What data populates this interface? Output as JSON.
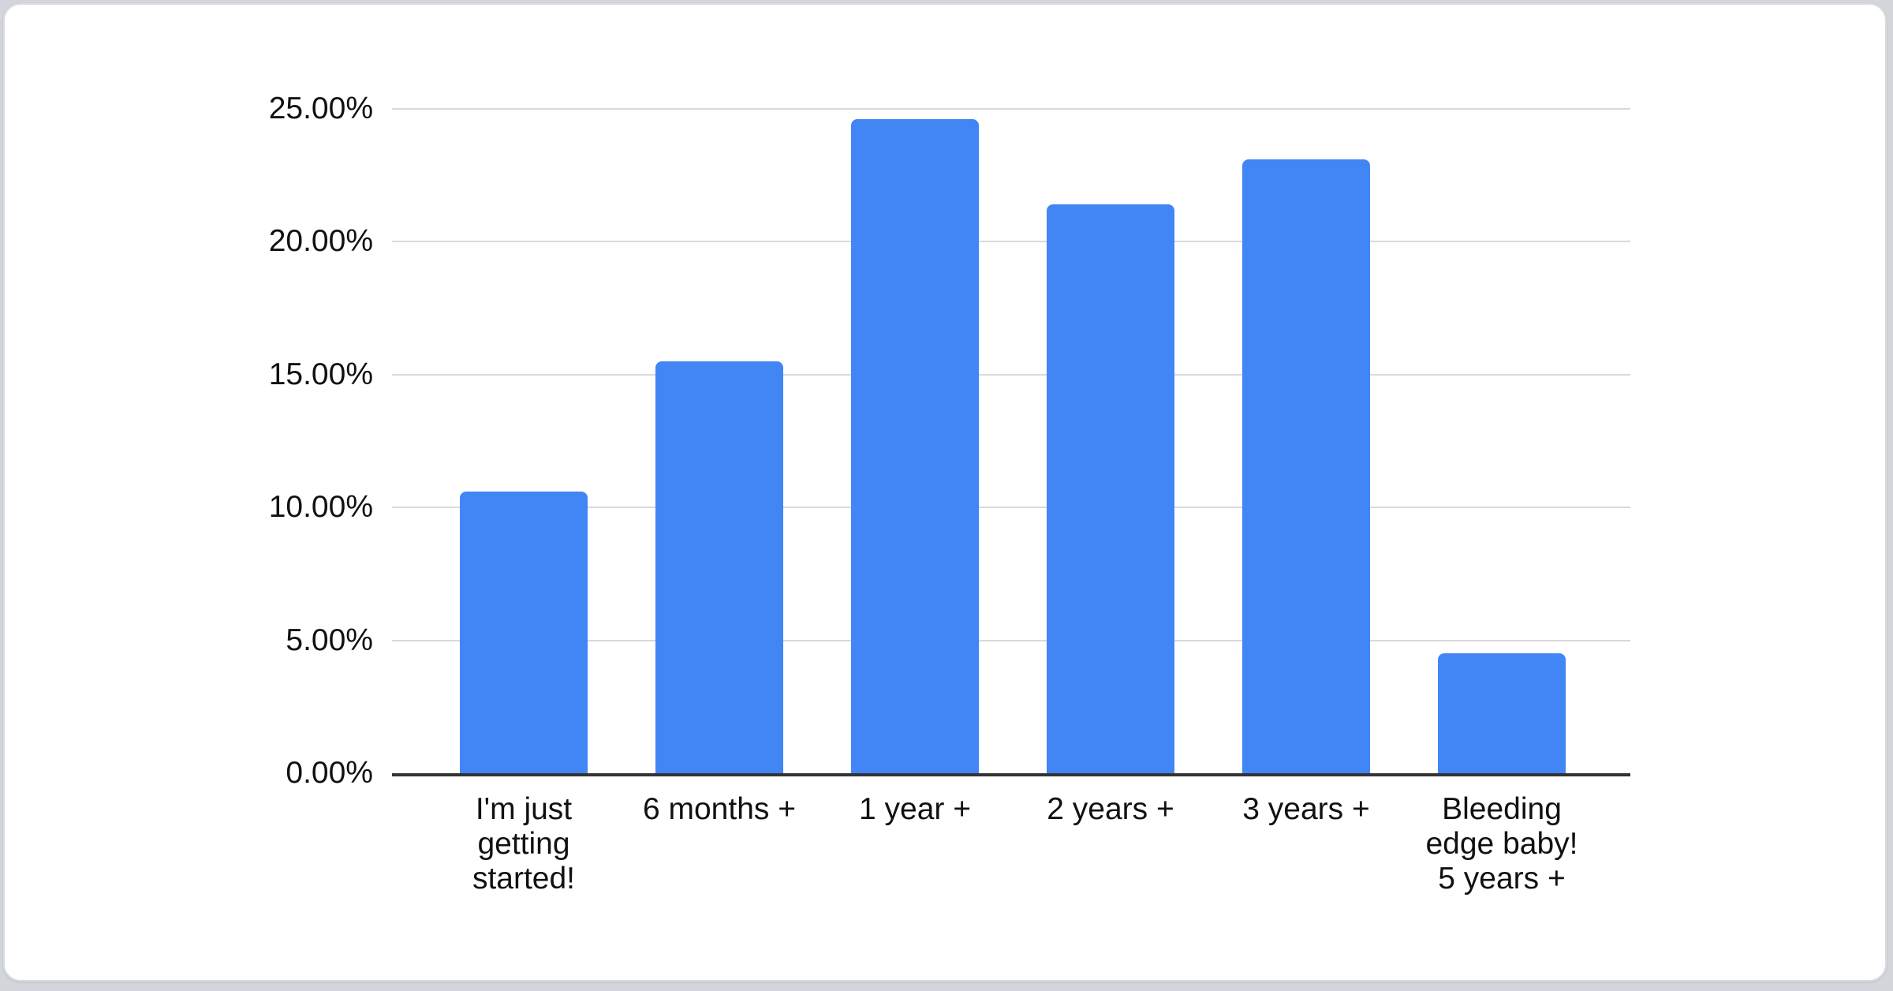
{
  "page": {
    "background_color": "#d3d6da",
    "card_background": "#ffffff",
    "card_border_color": "#d9dce0"
  },
  "chart_data": {
    "type": "bar",
    "categories": [
      "I'm just getting started!",
      "6 months +",
      "1 year +",
      "2 years +",
      "3 years +",
      "Bleeding edge baby! 5 years +"
    ],
    "category_lines": [
      [
        "I'm just",
        "getting",
        "started!"
      ],
      [
        "6 months +"
      ],
      [
        "1 year +"
      ],
      [
        "2 years +"
      ],
      [
        "3 years +"
      ],
      [
        "Bleeding",
        "edge baby!",
        "5 years +"
      ]
    ],
    "values": [
      10.6,
      15.5,
      24.6,
      21.4,
      23.1,
      4.5
    ],
    "unit": "%",
    "ylim": [
      0,
      25
    ],
    "y_ticks": [
      {
        "label": "0.00%",
        "value": 0
      },
      {
        "label": "5.00%",
        "value": 5
      },
      {
        "label": "10.00%",
        "value": 10
      },
      {
        "label": "15.00%",
        "value": 15
      },
      {
        "label": "20.00%",
        "value": 20
      },
      {
        "label": "25.00%",
        "value": 25
      }
    ],
    "grid": true,
    "legend": "none",
    "bar_color": "#4285f4",
    "gridline_color": "#d9d9d9",
    "axis_line_color": "#333333",
    "label_color": "#111111"
  }
}
